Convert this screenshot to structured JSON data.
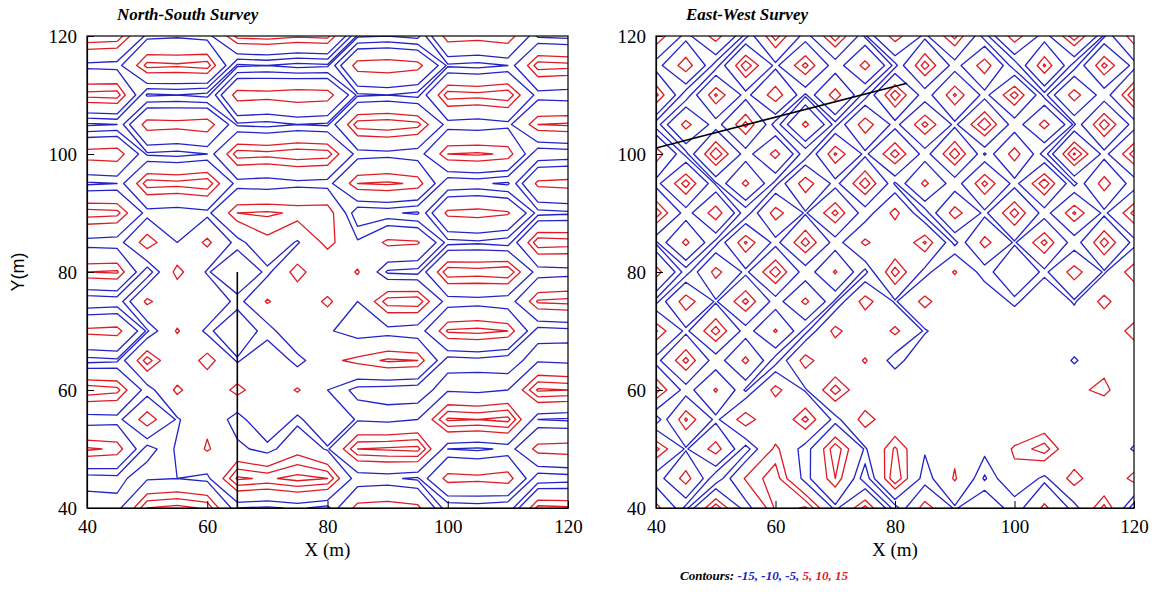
{
  "chart_data": [
    {
      "type": "contour",
      "title": "North-South Survey",
      "xlabel": "X (m)",
      "ylabel": "Y(m)",
      "xlim": [
        40,
        120
      ],
      "ylim": [
        40,
        120
      ],
      "xticks": [
        40,
        60,
        80,
        100,
        120
      ],
      "yticks": [
        40,
        60,
        80,
        100,
        120
      ],
      "x": [
        40,
        45,
        50,
        55,
        60,
        65,
        70,
        75,
        80,
        85,
        90,
        95,
        100,
        105,
        110,
        115,
        120
      ],
      "y": [
        40,
        45,
        50,
        55,
        60,
        65,
        70,
        75,
        80,
        85,
        90,
        95,
        100,
        105,
        110,
        115,
        120
      ],
      "z": [
        [
          -6,
          -8,
          15,
          17,
          14,
          -10,
          -11,
          -9,
          -12,
          8,
          9,
          7,
          -14,
          -13,
          -15,
          12,
          11
        ],
        [
          -13,
          -12,
          -6,
          -5,
          -7,
          16,
          14,
          17,
          15,
          -10,
          -9,
          -11,
          8,
          7,
          9,
          -14,
          -13
        ],
        [
          11,
          9,
          -13,
          -4,
          6,
          -3,
          -8,
          2,
          -6,
          15,
          16,
          17,
          -10,
          -11,
          -9,
          8,
          9
        ],
        [
          -9,
          -8,
          10,
          -6,
          3,
          -9,
          5,
          -7,
          4,
          -6,
          -7,
          -5,
          16,
          15,
          17,
          -10,
          -11
        ],
        [
          14,
          12,
          -9,
          7,
          -4,
          8,
          -3,
          6,
          -5,
          -12,
          -13,
          -14,
          -6,
          -7,
          -5,
          16,
          15
        ],
        [
          -12,
          -11,
          13,
          -5,
          9,
          -6,
          4,
          -8,
          3,
          7,
          11,
          10,
          -13,
          -12,
          -14,
          -6,
          -7
        ],
        [
          7,
          8,
          -11,
          6,
          -7,
          3,
          -9,
          5,
          -4,
          -9,
          -8,
          -10,
          11,
          12,
          10,
          -13,
          -12
        ],
        [
          -15,
          -14,
          7,
          -4,
          5,
          -8,
          6,
          -3,
          7,
          -5,
          13,
          14,
          -9,
          -8,
          -10,
          11,
          12
        ],
        [
          10,
          11,
          -14,
          8,
          -6,
          4,
          -7,
          9,
          -5,
          6,
          -11,
          -12,
          14,
          13,
          15,
          -9,
          -8
        ],
        [
          -8,
          -9,
          10,
          -5,
          7,
          -8,
          3,
          -6,
          8,
          -4,
          7,
          6,
          -12,
          -11,
          -13,
          14,
          13
        ],
        [
          13,
          12,
          -8,
          -9,
          -7,
          10,
          11,
          9,
          10,
          -15,
          -14,
          -16,
          7,
          8,
          6,
          -12,
          -11
        ],
        [
          -11,
          -10,
          13,
          12,
          14,
          -8,
          -9,
          -7,
          -8,
          10,
          11,
          9,
          -15,
          -14,
          -16,
          7,
          8
        ],
        [
          9,
          10,
          -11,
          -12,
          -10,
          13,
          12,
          14,
          13,
          -8,
          -7,
          -9,
          10,
          11,
          9,
          -15,
          -14
        ],
        [
          -16,
          -15,
          9,
          8,
          10,
          -11,
          -12,
          -10,
          -11,
          13,
          14,
          12,
          -8,
          -9,
          -7,
          10,
          11
        ],
        [
          12,
          13,
          -16,
          -15,
          -17,
          9,
          8,
          10,
          9,
          -11,
          -10,
          -12,
          13,
          12,
          14,
          -8,
          -9
        ],
        [
          -7,
          -8,
          12,
          11,
          13,
          -16,
          -15,
          -17,
          -16,
          9,
          10,
          8,
          -11,
          -12,
          -10,
          13,
          12
        ],
        [
          15,
          14,
          -7,
          -6,
          -8,
          12,
          13,
          11,
          12,
          -16,
          -15,
          -17,
          9,
          8,
          10,
          -11,
          -12
        ]
      ],
      "levels": [
        -15,
        -10,
        -5,
        5,
        10,
        15
      ],
      "level_colors": [
        "#2323c8",
        "#2323c8",
        "#2323c8",
        "#e01b24",
        "#e01b24",
        "#e01b24"
      ],
      "lines": [
        {
          "x": [
            65,
            65
          ],
          "y": [
            40,
            80
          ],
          "color": "#000000"
        }
      ]
    },
    {
      "type": "contour",
      "title": "East-West Survey",
      "xlabel": "X (m)",
      "xlim": [
        40,
        120
      ],
      "ylim": [
        40,
        120
      ],
      "xticks": [
        40,
        60,
        80,
        100,
        120
      ],
      "yticks": [
        40,
        60,
        80,
        100,
        120
      ],
      "x": [
        40,
        45,
        50,
        55,
        60,
        65,
        70,
        75,
        80,
        85,
        90,
        95,
        100,
        105,
        110,
        115,
        120
      ],
      "y": [
        40,
        45,
        50,
        55,
        60,
        65,
        70,
        75,
        80,
        85,
        90,
        95,
        100,
        105,
        110,
        115,
        120
      ],
      "z": [
        [
          8,
          -12,
          14,
          -9,
          11,
          16,
          -7,
          12,
          -13,
          9,
          -6,
          4,
          -10,
          7,
          -8,
          12,
          -14
        ],
        [
          -10,
          9,
          -15,
          6,
          13,
          -8,
          10,
          -14,
          15,
          -9,
          6,
          -11,
          3,
          -7,
          9,
          -5,
          8
        ],
        [
          12,
          -6,
          9,
          -13,
          7,
          -9,
          14,
          -6,
          11,
          -4,
          3,
          -3,
          6,
          13,
          -4,
          3,
          -6
        ],
        [
          -14,
          11,
          -7,
          10,
          -5,
          12,
          -8,
          9,
          -3,
          2,
          -4,
          2,
          -3,
          -2,
          4,
          -3,
          2
        ],
        [
          13,
          -9,
          6,
          -11,
          8,
          -6,
          13,
          -4,
          5,
          -3,
          2,
          -5,
          3,
          -2,
          3,
          7,
          -3
        ],
        [
          -8,
          12,
          -10,
          7,
          -13,
          9,
          -5,
          6,
          -9,
          4,
          -3,
          2,
          -4,
          3,
          -6,
          2,
          -4
        ],
        [
          11,
          -7,
          13,
          -9,
          6,
          -12,
          8,
          -5,
          7,
          -6,
          3,
          -2,
          5,
          -3,
          2,
          -4,
          9
        ],
        [
          -12,
          10,
          -6,
          12,
          -9,
          7,
          -11,
          9,
          -6,
          8,
          -5,
          3,
          -7,
          4,
          -6,
          8,
          -5
        ],
        [
          9,
          -13,
          8,
          -7,
          14,
          -10,
          6,
          -12,
          13,
          -8,
          6,
          -9,
          5,
          -7,
          9,
          -6,
          10
        ],
        [
          -11,
          7,
          -12,
          11,
          -8,
          13,
          -9,
          7,
          -5,
          11,
          -12,
          8,
          -6,
          12,
          -10,
          13,
          -8
        ],
        [
          14,
          -9,
          10,
          -14,
          9,
          -6,
          12,
          -10,
          8,
          -13,
          9,
          -7,
          13,
          -9,
          11,
          -7,
          12
        ],
        [
          -8,
          13,
          -11,
          7,
          -12,
          10,
          -8,
          14,
          -11,
          7,
          -10,
          12,
          -8,
          14,
          -12,
          9,
          -10
        ],
        [
          10,
          -12,
          15,
          -9,
          8,
          -14,
          11,
          -7,
          13,
          -9,
          14,
          -11,
          9,
          -13,
          16,
          -8,
          13
        ],
        [
          -13,
          8,
          -9,
          12,
          -13,
          7,
          -12,
          10,
          -8,
          12,
          -7,
          15,
          -10,
          8,
          -11,
          14,
          -9
        ],
        [
          12,
          -14,
          11,
          -8,
          10,
          -11,
          9,
          -13,
          14,
          -10,
          11,
          -8,
          13,
          -12,
          9,
          -10,
          15
        ],
        [
          -9,
          10,
          -13,
          14,
          -7,
          12,
          -10,
          8,
          -12,
          13,
          -9,
          10,
          -14,
          11,
          -13,
          12,
          -8
        ],
        [
          11,
          -8,
          9,
          -12,
          13,
          -9,
          14,
          -11,
          9,
          -7,
          12,
          -13,
          10,
          -9,
          14,
          -11,
          10
        ]
      ],
      "levels": [
        -15,
        -10,
        -5,
        5,
        10,
        15
      ],
      "level_colors": [
        "#2323c8",
        "#2323c8",
        "#2323c8",
        "#e01b24",
        "#e01b24",
        "#e01b24"
      ],
      "lines": [
        {
          "x": [
            40,
            82
          ],
          "y": [
            101,
            112
          ],
          "color": "#000000"
        }
      ],
      "annotation": "Contours:"
    }
  ]
}
